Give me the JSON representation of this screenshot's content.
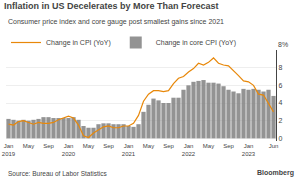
{
  "chart_data": {
    "type": "bar",
    "title": "Inflation in US Decelerates by More Than Forecast",
    "subtitle": "Consumer price index and core gauge post smallest gains since 2021",
    "annotations": [
      "8%",
      "Source: Bureau of Labor Statistics",
      "Bloomberg"
    ],
    "categories": [
      "Jan\n2019",
      null,
      null,
      null,
      "May",
      null,
      null,
      null,
      "Sep",
      null,
      null,
      null,
      "Jan\n2020",
      null,
      null,
      null,
      "May",
      null,
      null,
      null,
      "Sep",
      null,
      null,
      null,
      "Jan\n2021",
      null,
      null,
      null,
      "May",
      null,
      null,
      null,
      "Sep",
      null,
      null,
      null,
      "Jan\n2022",
      null,
      null,
      null,
      "May",
      null,
      null,
      null,
      "Sep",
      null,
      null,
      null,
      "Jan\n2023",
      null,
      null,
      null,
      null,
      "Jun"
    ],
    "series": [
      {
        "name": "Change in CPI (YoY)",
        "type": "line",
        "color": "#e8880a",
        "values": [
          1.6,
          1.5,
          1.9,
          2.0,
          1.8,
          1.6,
          1.8,
          1.7,
          1.7,
          1.8,
          2.1,
          2.3,
          2.5,
          2.3,
          1.5,
          0.3,
          0.1,
          0.6,
          1.0,
          1.3,
          1.4,
          1.2,
          1.2,
          1.4,
          1.4,
          1.7,
          2.6,
          4.2,
          5.0,
          5.4,
          5.4,
          5.3,
          5.4,
          6.2,
          6.8,
          7.0,
          7.5,
          7.9,
          8.5,
          8.3,
          8.6,
          9.1,
          8.5,
          8.3,
          8.2,
          7.7,
          7.1,
          6.5,
          6.4,
          6.0,
          5.0,
          4.9,
          4.0,
          3.0
        ]
      },
      {
        "name": "Change in core CPI (YoY)",
        "type": "bar",
        "color": "#888888",
        "values": [
          2.2,
          2.1,
          2.0,
          2.1,
          2.0,
          2.1,
          2.2,
          2.4,
          2.4,
          2.3,
          2.3,
          2.3,
          2.3,
          2.4,
          2.1,
          1.4,
          1.2,
          1.2,
          1.6,
          1.7,
          1.7,
          1.6,
          1.6,
          1.6,
          1.4,
          1.3,
          1.6,
          3.0,
          3.8,
          4.5,
          4.3,
          4.0,
          4.0,
          4.6,
          4.6,
          5.5,
          6.0,
          6.4,
          6.5,
          6.6,
          6.3,
          6.3,
          6.2,
          5.9,
          5.5,
          5.3,
          5.1,
          5.6,
          5.5,
          5.6,
          5.5,
          5.3,
          5.5,
          4.8
        ]
      }
    ],
    "ylim": [
      -0.3,
      10.0
    ],
    "yticks": [
      0,
      2,
      4,
      6,
      8
    ],
    "grid": true,
    "legend": "upper left"
  }
}
